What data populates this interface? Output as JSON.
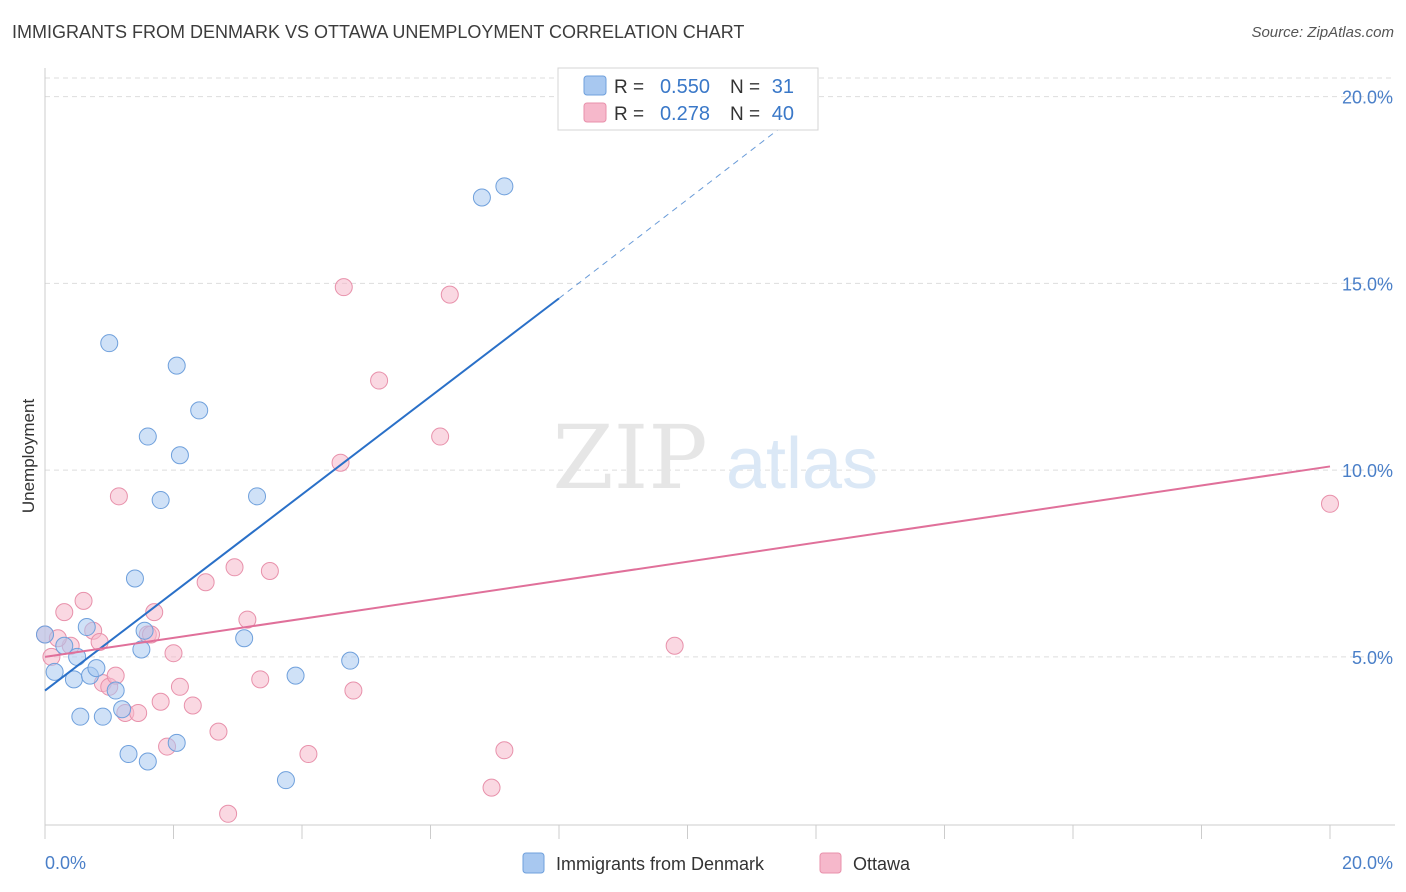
{
  "title": "IMMIGRANTS FROM DENMARK VS OTTAWA UNEMPLOYMENT CORRELATION CHART",
  "source": "Source: ZipAtlas.com",
  "watermark": {
    "zip": "ZIP",
    "atlas": "atlas"
  },
  "colors": {
    "blue_fill": "#a8c8f0",
    "blue_stroke": "#6fa0dc",
    "blue_line": "#2a70c8",
    "pink_fill": "#f6b8cb",
    "pink_stroke": "#e891ab",
    "pink_line": "#e0709a",
    "tick_label": "#4a7fc8",
    "grid": "#dddddd"
  },
  "legend_box": {
    "rows": [
      {
        "r_label": "R =",
        "r_value": "0.550",
        "n_label": "N =",
        "n_value": "31"
      },
      {
        "r_label": "R =",
        "r_value": "0.278",
        "n_label": "N =",
        "n_value": "40"
      }
    ]
  },
  "chart_data": {
    "type": "scatter",
    "title": "IMMIGRANTS FROM DENMARK VS OTTAWA UNEMPLOYMENT CORRELATION CHART",
    "xlabel": "",
    "ylabel": "Unemployment",
    "xlim": [
      0,
      20
    ],
    "ylim": [
      0.5,
      20.5
    ],
    "x_tick_labels": [
      "0.0%",
      "20.0%"
    ],
    "y_ticks": [
      5,
      10,
      15,
      20
    ],
    "y_tick_labels": [
      "5.0%",
      "10.0%",
      "15.0%",
      "20.0%"
    ],
    "legend": [
      "Immigrants from Denmark",
      "Ottawa"
    ],
    "series": [
      {
        "name": "Immigrants from Denmark",
        "r": 0.55,
        "n": 31,
        "trend": {
          "x0": 0,
          "y0": 4.1,
          "x1": 8,
          "y1": 14.6,
          "dash_to_x": 12,
          "dash_to_y": 19.9
        },
        "points": [
          [
            0.0,
            5.6
          ],
          [
            0.15,
            4.6
          ],
          [
            0.3,
            5.3
          ],
          [
            0.5,
            5.0
          ],
          [
            0.45,
            4.4
          ],
          [
            0.65,
            5.8
          ],
          [
            0.7,
            4.5
          ],
          [
            0.8,
            4.7
          ],
          [
            0.55,
            3.4
          ],
          [
            0.9,
            3.4
          ],
          [
            1.1,
            4.1
          ],
          [
            1.2,
            3.6
          ],
          [
            1.3,
            2.4
          ],
          [
            1.4,
            7.1
          ],
          [
            1.5,
            5.2
          ],
          [
            1.55,
            5.7
          ],
          [
            1.6,
            2.2
          ],
          [
            1.8,
            9.2
          ],
          [
            2.05,
            2.7
          ],
          [
            1.0,
            13.4
          ],
          [
            1.6,
            10.9
          ],
          [
            2.05,
            12.8
          ],
          [
            2.1,
            10.4
          ],
          [
            2.4,
            11.6
          ],
          [
            3.3,
            9.3
          ],
          [
            3.1,
            5.5
          ],
          [
            3.75,
            1.7
          ],
          [
            3.9,
            4.5
          ],
          [
            4.75,
            4.9
          ],
          [
            6.8,
            17.3
          ],
          [
            7.15,
            17.6
          ]
        ]
      },
      {
        "name": "Ottawa",
        "r": 0.278,
        "n": 40,
        "trend": {
          "x0": 0,
          "y0": 5.0,
          "x1": 20,
          "y1": 10.1
        },
        "points": [
          [
            0.0,
            5.6
          ],
          [
            0.1,
            5.0
          ],
          [
            0.3,
            6.2
          ],
          [
            0.4,
            5.3
          ],
          [
            0.6,
            6.5
          ],
          [
            0.75,
            5.7
          ],
          [
            0.85,
            5.4
          ],
          [
            0.9,
            4.3
          ],
          [
            1.0,
            4.2
          ],
          [
            1.1,
            4.5
          ],
          [
            1.15,
            9.3
          ],
          [
            1.25,
            3.5
          ],
          [
            1.45,
            3.5
          ],
          [
            1.6,
            5.6
          ],
          [
            1.7,
            6.2
          ],
          [
            1.8,
            3.8
          ],
          [
            1.9,
            2.6
          ],
          [
            2.0,
            5.1
          ],
          [
            2.1,
            4.2
          ],
          [
            2.3,
            3.7
          ],
          [
            2.5,
            7.0
          ],
          [
            2.7,
            3.0
          ],
          [
            2.85,
            0.8
          ],
          [
            2.95,
            7.4
          ],
          [
            3.15,
            6.0
          ],
          [
            3.35,
            4.4
          ],
          [
            3.5,
            7.3
          ],
          [
            4.1,
            2.4
          ],
          [
            4.6,
            10.2
          ],
          [
            4.65,
            14.9
          ],
          [
            4.8,
            4.1
          ],
          [
            5.2,
            12.4
          ],
          [
            6.15,
            10.9
          ],
          [
            6.3,
            14.7
          ],
          [
            6.95,
            1.5
          ],
          [
            7.15,
            2.5
          ],
          [
            9.8,
            5.3
          ],
          [
            20.0,
            9.1
          ],
          [
            1.65,
            5.6
          ],
          [
            0.2,
            5.5
          ]
        ]
      }
    ]
  }
}
